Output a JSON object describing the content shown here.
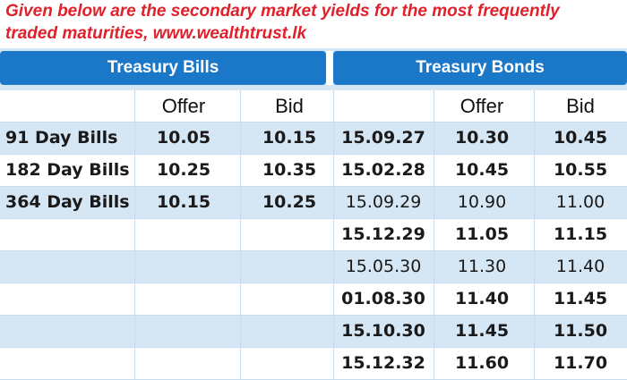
{
  "caption": {
    "line1": "Given below are the secondary market yields for the most frequently",
    "line2": "traded maturities, www.wealthtrust.lk"
  },
  "colors": {
    "caption": "#e0202a",
    "header_bg": "#1b78c8",
    "row_alt": "#d5e6f4"
  },
  "bills": {
    "title": "Treasury Bills",
    "col_offer": "Offer",
    "col_bid": "Bid",
    "rows": [
      {
        "name": "91 Day Bills",
        "offer": "10.05",
        "bid": "10.15"
      },
      {
        "name": "182 Day Bills",
        "offer": "10.25",
        "bid": "10.35"
      },
      {
        "name": "364 Day Bills",
        "offer": "10.15",
        "bid": "10.25"
      }
    ]
  },
  "bonds": {
    "title": "Treasury Bonds",
    "col_offer": "Offer",
    "col_bid": "Bid",
    "rows": [
      {
        "maturity": "15.09.27",
        "offer": "10.30",
        "bid": "10.45",
        "bold": true
      },
      {
        "maturity": "15.02.28",
        "offer": "10.45",
        "bid": "10.55",
        "bold": true
      },
      {
        "maturity": "15.09.29",
        "offer": "10.90",
        "bid": "11.00",
        "bold": false
      },
      {
        "maturity": "15.12.29",
        "offer": "11.05",
        "bid": "11.15",
        "bold": true
      },
      {
        "maturity": "15.05.30",
        "offer": "11.30",
        "bid": "11.40",
        "bold": false
      },
      {
        "maturity": "01.08.30",
        "offer": "11.40",
        "bid": "11.45",
        "bold": true
      },
      {
        "maturity": "15.10.30",
        "offer": "11.45",
        "bid": "11.50",
        "bold": true
      },
      {
        "maturity": "15.12.32",
        "offer": "11.60",
        "bid": "11.70",
        "bold": true
      }
    ]
  }
}
